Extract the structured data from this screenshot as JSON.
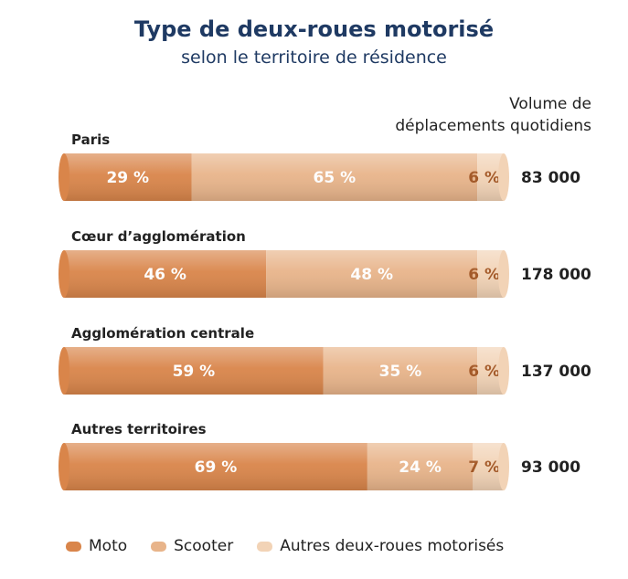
{
  "chart_data": {
    "type": "bar",
    "stacked": true,
    "orientation": "horizontal",
    "title": "Type de deux-roues motorisé",
    "subtitle": "selon le territoire de résidence",
    "volume_header": [
      "Volume de",
      "déplacements quotidiens"
    ],
    "categories": [
      "Paris",
      "Cœur d’agglomération",
      "Agglomération centrale",
      "Autres territoires"
    ],
    "series": [
      {
        "name": "Moto",
        "values": [
          29,
          46,
          59,
          69
        ],
        "labels": [
          "29 %",
          "46 %",
          "59 %",
          "69 %"
        ],
        "color": "#d9854a"
      },
      {
        "name": "Scooter",
        "values": [
          65,
          48,
          35,
          24
        ],
        "labels": [
          "65 %",
          "48 %",
          "35 %",
          "24 %"
        ],
        "color": "#e8b48a"
      },
      {
        "name": "Autres deux-roues motorisés",
        "values": [
          6,
          6,
          6,
          7
        ],
        "labels": [
          "6 %",
          "6 %",
          "6 %",
          "7 %"
        ],
        "color": "#f2d3b6"
      }
    ],
    "volumes": [
      "83 000",
      "178 000",
      "137 000",
      "93 000"
    ],
    "legend_position": "bottom-left"
  }
}
